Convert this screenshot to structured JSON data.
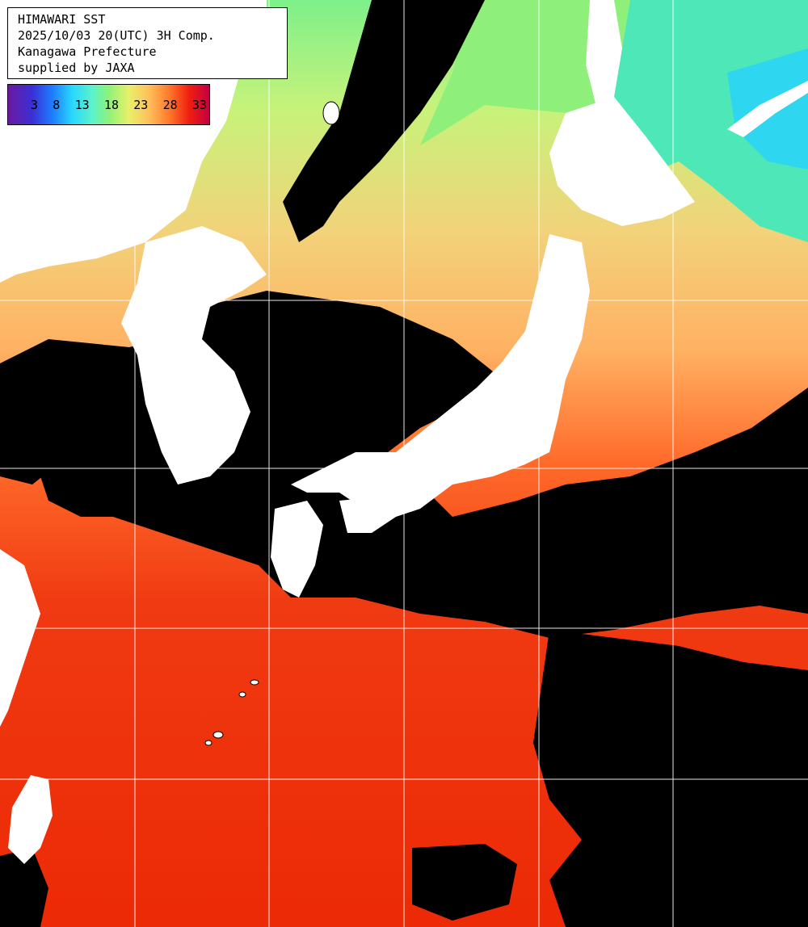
{
  "header": {
    "line1": "HIMAWARI SST",
    "line2": "2025/10/03 20(UTC) 3H Comp.",
    "line3": "Kanagawa Prefecture",
    "line4": "supplied by JAXA"
  },
  "legend": {
    "ticks": [
      "3",
      "8",
      "13",
      "18",
      "23",
      "28",
      "33"
    ],
    "colors": [
      "#6a1a9e",
      "#1e7cff",
      "#28d8ff",
      "#8ef27a",
      "#e8f06a",
      "#ff7a2a",
      "#c20040"
    ]
  },
  "palette": {
    "land": "#ffffff",
    "cloud_or_nodata": "#000000",
    "grid": "#ffffff",
    "sst_cold": "#3de6e0",
    "sst_cool": "#7ef08a",
    "sst_mild": "#e4f27a",
    "sst_warm": "#ffb862",
    "sst_hot": "#f43a12",
    "sst_hottest": "#ec2400"
  }
}
